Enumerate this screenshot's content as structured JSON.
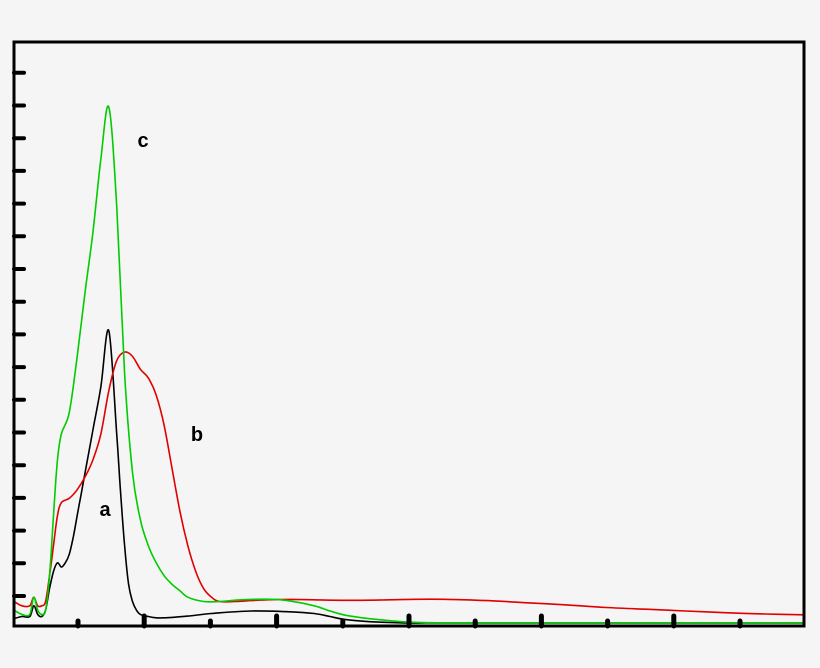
{
  "chart_data": {
    "type": "line",
    "title": "",
    "xlabel": "",
    "ylabel": "",
    "xlim": [
      0,
      100
    ],
    "ylim": [
      0,
      100
    ],
    "grid": false,
    "background": "#f5f5f5",
    "series": [
      {
        "name": "a",
        "color": "#000000",
        "x": [
          0,
          1,
          2,
          2.5,
          3,
          3.5,
          4,
          4.5,
          5,
          5.5,
          6,
          6.5,
          7,
          7.5,
          8,
          8.5,
          9,
          10,
          11,
          12,
          13,
          13.5,
          14,
          14.5,
          15,
          15.5,
          16,
          17,
          18,
          19,
          20,
          22,
          25,
          30,
          35,
          38,
          40,
          42,
          45,
          48,
          50,
          52,
          55,
          60,
          70,
          80,
          90,
          100
        ],
        "y": [
          1,
          1.5,
          1.5,
          4,
          2,
          1.5,
          3,
          8,
          12,
          14,
          13,
          14,
          16,
          20,
          25,
          30,
          35,
          45,
          55,
          68,
          44,
          30,
          18,
          9,
          5,
          3,
          2,
          1.5,
          1.2,
          1.2,
          1.3,
          1.6,
          2.2,
          2.8,
          2.6,
          2.2,
          1.5,
          0.8,
          0.3,
          0.1,
          0,
          0,
          0,
          0,
          0,
          0,
          0,
          0
        ]
      },
      {
        "name": "b",
        "color": "#e00000",
        "x": [
          0,
          1,
          2,
          2.5,
          3,
          3.5,
          4,
          4.5,
          5,
          5.5,
          6,
          7,
          8,
          9,
          10,
          11,
          12,
          13,
          14,
          15,
          16,
          17,
          18,
          19,
          20,
          21,
          22,
          23,
          24,
          25,
          26,
          28,
          30,
          32,
          35,
          38,
          40,
          45,
          50,
          55,
          60,
          65,
          70,
          75,
          80,
          85,
          90,
          95,
          100
        ],
        "y": [
          5,
          4,
          4,
          6,
          4,
          4,
          5,
          11,
          18,
          25,
          28,
          29,
          31,
          34,
          38,
          44,
          54,
          61,
          63,
          62,
          59,
          57,
          53,
          46,
          36,
          26,
          18,
          12,
          8,
          6,
          5,
          5,
          5.2,
          5.4,
          5.5,
          5.4,
          5.3,
          5.3,
          5.5,
          5.5,
          5.2,
          4.7,
          4.2,
          3.6,
          3.2,
          2.8,
          2.4,
          2.1,
          1.9
        ]
      },
      {
        "name": "c",
        "color": "#00cc00",
        "x": [
          0,
          1,
          2,
          2.5,
          3,
          3.5,
          4,
          4.5,
          5,
          5.5,
          6,
          7,
          8,
          9,
          10,
          11,
          12,
          13,
          14,
          15,
          16,
          17,
          18,
          19,
          20,
          21,
          22,
          24,
          26,
          28,
          30,
          33,
          35,
          38,
          40,
          42,
          45,
          48,
          50,
          55,
          60,
          70,
          80,
          90,
          100
        ],
        "y": [
          3,
          2,
          2,
          6,
          3,
          2,
          3,
          11,
          25,
          38,
          44,
          49,
          62,
          77,
          91,
          108,
          120,
          97,
          58,
          35,
          24,
          18,
          14,
          11,
          9,
          7.5,
          6,
          5,
          5,
          5.3,
          5.5,
          5.5,
          5.1,
          4,
          2.8,
          1.8,
          1,
          0.5,
          0.2,
          0,
          0,
          0,
          0,
          0,
          0
        ]
      }
    ]
  }
}
